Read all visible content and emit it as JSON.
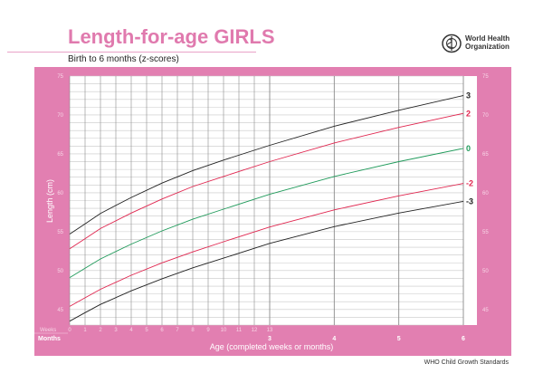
{
  "header": {
    "title": "Length-for-age GIRLS",
    "subtitle": "Birth to 6 months (z-scores)",
    "organization": "World Health\nOrganization",
    "logo_icon": "who-emblem-icon"
  },
  "footer": "WHO Child Growth Standards",
  "colors": {
    "brand_pink": "#e27fb1",
    "title_pink": "#e07aae",
    "z_black": "#222222",
    "z_red": "#e0264f",
    "z_green": "#1f9a5a"
  },
  "chart_data": {
    "type": "line",
    "title": "Length-for-age GIRLS",
    "subtitle": "Birth to 6 months (z-scores)",
    "xlabel": "Age (completed weeks or months)",
    "ylabel": "Length (cm)",
    "weeks_label": "Weeks",
    "months_label": "Months",
    "ylim": [
      43,
      75
    ],
    "yticks": [
      "45",
      "50",
      "55",
      "60",
      "65",
      "70",
      "75"
    ],
    "week_ticks": [
      "0",
      "1",
      "2",
      "3",
      "4",
      "5",
      "6",
      "7",
      "8",
      "9",
      "10",
      "11",
      "12",
      "13"
    ],
    "month_ticks": [
      "3",
      "4",
      "5",
      "6"
    ],
    "grid": true,
    "x": [
      {
        "weeks": 0
      },
      {
        "weeks": 1
      },
      {
        "weeks": 2
      },
      {
        "weeks": 4
      },
      {
        "weeks": 6
      },
      {
        "weeks": 8
      },
      {
        "weeks": 10
      },
      {
        "weeks": 13
      },
      {
        "months": 4
      },
      {
        "months": 5
      },
      {
        "months": 6
      }
    ],
    "series": [
      {
        "name": "3",
        "color": "#222222",
        "values": [
          54.7,
          56.0,
          57.35,
          59.4,
          61.25,
          62.85,
          64.2,
          66.1,
          68.55,
          70.6,
          72.5
        ]
      },
      {
        "name": "2",
        "color": "#e0264f",
        "values": [
          52.8,
          54.1,
          55.4,
          57.4,
          59.2,
          60.8,
          62.1,
          64.0,
          66.4,
          68.4,
          70.2
        ]
      },
      {
        "name": "0",
        "color": "#1f9a5a",
        "values": [
          49.1,
          50.3,
          51.5,
          53.4,
          55.1,
          56.6,
          57.9,
          59.8,
          62.1,
          64.0,
          65.7
        ]
      },
      {
        "name": "-2",
        "color": "#e0264f",
        "values": [
          45.4,
          46.5,
          47.6,
          49.4,
          51.0,
          52.4,
          53.7,
          55.6,
          57.8,
          59.6,
          61.2
        ]
      },
      {
        "name": "-3",
        "color": "#222222",
        "values": [
          43.5,
          44.6,
          45.65,
          47.4,
          48.95,
          50.36,
          51.6,
          53.5,
          55.65,
          57.4,
          58.9
        ]
      }
    ]
  }
}
